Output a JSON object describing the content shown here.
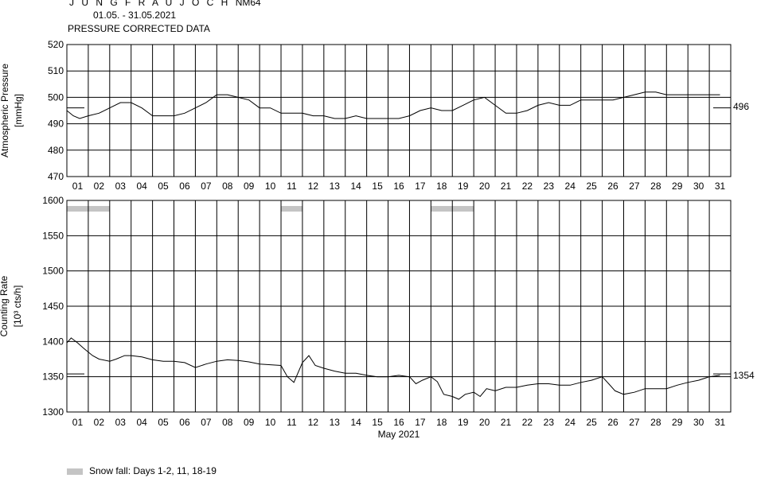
{
  "header": {
    "title": "J U N G F R A U J O C H",
    "station": "NM64",
    "period": "01.05. - 31.05.2021",
    "subtitle": "PRESSURE CORRECTED DATA"
  },
  "chart_data": [
    {
      "type": "line",
      "ylabel": "Atmospheric Pressure",
      "yunit": "[mmHg]",
      "ylim": [
        470,
        520
      ],
      "yticks": [
        470,
        480,
        490,
        500,
        510,
        520
      ],
      "xlim": [
        1,
        32
      ],
      "categories": [
        "01",
        "02",
        "03",
        "04",
        "05",
        "06",
        "07",
        "08",
        "09",
        "10",
        "11",
        "12",
        "13",
        "14",
        "15",
        "16",
        "17",
        "18",
        "19",
        "20",
        "21",
        "22",
        "23",
        "24",
        "25",
        "26",
        "27",
        "28",
        "29",
        "30",
        "31"
      ],
      "reference_value": 496,
      "reference_label": "496",
      "grid": true,
      "series": [
        {
          "x": [
            1.0,
            1.3,
            1.6,
            2.0,
            2.5,
            3.0,
            3.5,
            4.0,
            4.5,
            5.0,
            5.5,
            6.0,
            6.5,
            7.0,
            7.5,
            8.0,
            8.5,
            9.0,
            9.5,
            10.0,
            10.5,
            11.0,
            11.5,
            12.0,
            12.5,
            13.0,
            13.5,
            14.0,
            14.5,
            15.0,
            15.5,
            16.0,
            16.5,
            17.0,
            17.5,
            18.0,
            18.5,
            19.0,
            19.5,
            20.0,
            20.5,
            21.0,
            21.5,
            22.0,
            22.5,
            23.0,
            23.5,
            24.0,
            24.5,
            25.0,
            25.5,
            26.0,
            26.5,
            27.0,
            27.5,
            28.0,
            28.5,
            29.0,
            29.5,
            30.0,
            30.5,
            31.0,
            31.5
          ],
          "y": [
            495,
            493,
            492,
            493,
            494,
            496,
            498,
            498,
            496,
            493,
            493,
            493,
            494,
            496,
            498,
            501,
            501,
            500,
            499,
            496,
            496,
            494,
            494,
            494,
            493,
            493,
            492,
            492,
            493,
            492,
            492,
            492,
            492,
            493,
            495,
            496,
            495,
            495,
            497,
            499,
            500,
            497,
            494,
            494,
            495,
            497,
            498,
            497,
            497,
            499,
            499,
            499,
            499,
            500,
            501,
            502,
            502,
            501,
            501,
            501,
            501,
            501,
            501
          ]
        }
      ]
    },
    {
      "type": "line",
      "ylabel": "Counting Rate",
      "yunit": "[10³ cts/h]",
      "ylim": [
        1300,
        1600
      ],
      "yticks": [
        1300,
        1350,
        1400,
        1450,
        1500,
        1550,
        1600
      ],
      "xlim": [
        1,
        32
      ],
      "xlabel": "May 2021",
      "categories": [
        "01",
        "02",
        "03",
        "04",
        "05",
        "06",
        "07",
        "08",
        "09",
        "10",
        "11",
        "12",
        "13",
        "14",
        "15",
        "16",
        "17",
        "18",
        "19",
        "20",
        "21",
        "22",
        "23",
        "24",
        "25",
        "26",
        "27",
        "28",
        "29",
        "30",
        "31"
      ],
      "reference_value": 1354,
      "reference_label": "1354",
      "grid": true,
      "series": [
        {
          "x": [
            1.0,
            1.2,
            1.5,
            1.8,
            2.2,
            2.5,
            3.0,
            3.3,
            3.7,
            4.0,
            4.5,
            5.0,
            5.5,
            6.0,
            6.5,
            7.0,
            7.5,
            8.0,
            8.5,
            9.0,
            9.5,
            10.0,
            10.5,
            11.0,
            11.3,
            11.6,
            12.0,
            12.3,
            12.6,
            13.0,
            13.5,
            14.0,
            14.5,
            15.0,
            15.5,
            16.0,
            16.5,
            17.0,
            17.3,
            17.6,
            18.0,
            18.3,
            18.6,
            19.0,
            19.3,
            19.6,
            20.0,
            20.3,
            20.6,
            21.0,
            21.5,
            22.0,
            22.5,
            23.0,
            23.5,
            24.0,
            24.5,
            25.0,
            25.5,
            26.0,
            26.3,
            26.6,
            27.0,
            27.5,
            28.0,
            28.5,
            29.0,
            29.5,
            30.0,
            30.5,
            31.0,
            31.5
          ],
          "y": [
            1398,
            1405,
            1398,
            1390,
            1380,
            1375,
            1372,
            1375,
            1380,
            1380,
            1378,
            1374,
            1372,
            1372,
            1370,
            1363,
            1368,
            1372,
            1374,
            1373,
            1371,
            1368,
            1367,
            1366,
            1350,
            1342,
            1370,
            1380,
            1366,
            1362,
            1358,
            1355,
            1355,
            1352,
            1350,
            1350,
            1352,
            1350,
            1340,
            1345,
            1350,
            1343,
            1325,
            1322,
            1318,
            1325,
            1328,
            1322,
            1333,
            1330,
            1335,
            1335,
            1338,
            1340,
            1340,
            1338,
            1338,
            1342,
            1345,
            1350,
            1340,
            1330,
            1325,
            1328,
            1333,
            1333,
            1333,
            1338,
            1342,
            1345,
            1350,
            1352
          ]
        }
      ],
      "snow_fall_days": [
        1,
        2,
        11,
        18,
        19
      ]
    }
  ],
  "legend": {
    "snow_label": "Snow fall: Days 1-2, 11, 18-19",
    "snow_color": "#c4c4c4"
  }
}
